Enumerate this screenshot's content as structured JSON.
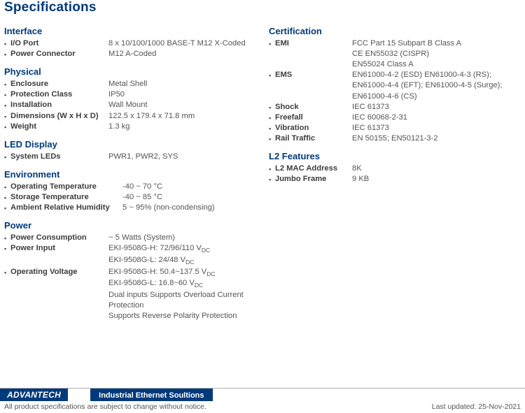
{
  "title": "Specifications",
  "left_sections": [
    {
      "heading": "Interface",
      "rows": [
        {
          "label": "I/O Port",
          "value": [
            "8 x 10/100/1000 BASE-T M12 X-Coded"
          ]
        },
        {
          "label": "Power Connector",
          "value": [
            "M12 A-Coded"
          ]
        }
      ]
    },
    {
      "heading": "Physical",
      "rows": [
        {
          "label": "Enclosure",
          "value": [
            "Metal Shell"
          ]
        },
        {
          "label": "Protection Class",
          "value": [
            "IP50"
          ]
        },
        {
          "label": "Installation",
          "value": [
            "Wall Mount"
          ]
        },
        {
          "label": "Dimensions (W x H x D)",
          "value": [
            "122.5 x 179.4 x 71.8 mm"
          ]
        },
        {
          "label": "Weight",
          "value": [
            "1.3 kg"
          ]
        }
      ]
    },
    {
      "heading": "LED Display",
      "rows": [
        {
          "label": "System LEDs",
          "value": [
            "PWR1, PWR2, SYS"
          ]
        }
      ]
    },
    {
      "heading": "Environment",
      "rows": [
        {
          "label": "Operating Temperature",
          "value": [
            "-40 ~ 70 °C"
          ],
          "wide": true
        },
        {
          "label": "Storage Temperature",
          "value": [
            "-40 ~ 85 °C"
          ],
          "wide": true
        },
        {
          "label": "Ambient Relative Humidity",
          "value": [
            "5 ~ 95% (non-condensing)"
          ],
          "wide": true
        }
      ]
    },
    {
      "heading": "Power",
      "rows": [
        {
          "label": "Power Consumption",
          "value": [
            "~ 5 Watts (System)"
          ]
        },
        {
          "label": "Power Input",
          "value": [
            "EKI-9508G-H: 72/96/110 V<sub>DC</sub>",
            "EKI-9508G-L: 24/48 V<sub>DC</sub>"
          ]
        },
        {
          "label": "Operating Voltage",
          "value": [
            "EKI-9508G-H: 50.4~137.5 V<sub>DC</sub>",
            "EKI-9508G-L: 16.8~60 V<sub>DC</sub>",
            "Dual inputs Supports Overload Current Protection",
            "Supports Reverse Polarity Protection"
          ]
        }
      ]
    }
  ],
  "right_sections": [
    {
      "heading": "Certification",
      "rows": [
        {
          "label": "EMI",
          "value": [
            "FCC Part 15 Subpart B Class A",
            "CE EN55032 (CISPR)",
            "EN55024 Class A"
          ]
        },
        {
          "label": "EMS",
          "value": [
            "EN61000-4-2 (ESD) EN61000-4-3 (RS);",
            "EN61000-4-4 (EFT); EN61000-4-5 (Surge);",
            "EN61000-4-6 (CS)"
          ]
        },
        {
          "label": "Shock",
          "value": [
            "IEC 61373"
          ]
        },
        {
          "label": "Freefall",
          "value": [
            "IEC 60068-2-31"
          ]
        },
        {
          "label": "Vibration",
          "value": [
            "IEC 61373"
          ]
        },
        {
          "label": "Rail Traffic",
          "value": [
            "EN 50155; EN50121-3-2"
          ]
        }
      ]
    },
    {
      "heading": "L2 Features",
      "rows": [
        {
          "label": "L2 MAC Address",
          "value": [
            "8K"
          ]
        },
        {
          "label": "Jumbo Frame",
          "value": [
            "9 KB"
          ]
        }
      ]
    }
  ],
  "footer": {
    "brand": "ADVANTECH",
    "strip": "Industrial Ethernet Soultions",
    "notice": "All product specifications are subject to change without notice.",
    "updated": "Last updated: 25-Nov-2021"
  }
}
